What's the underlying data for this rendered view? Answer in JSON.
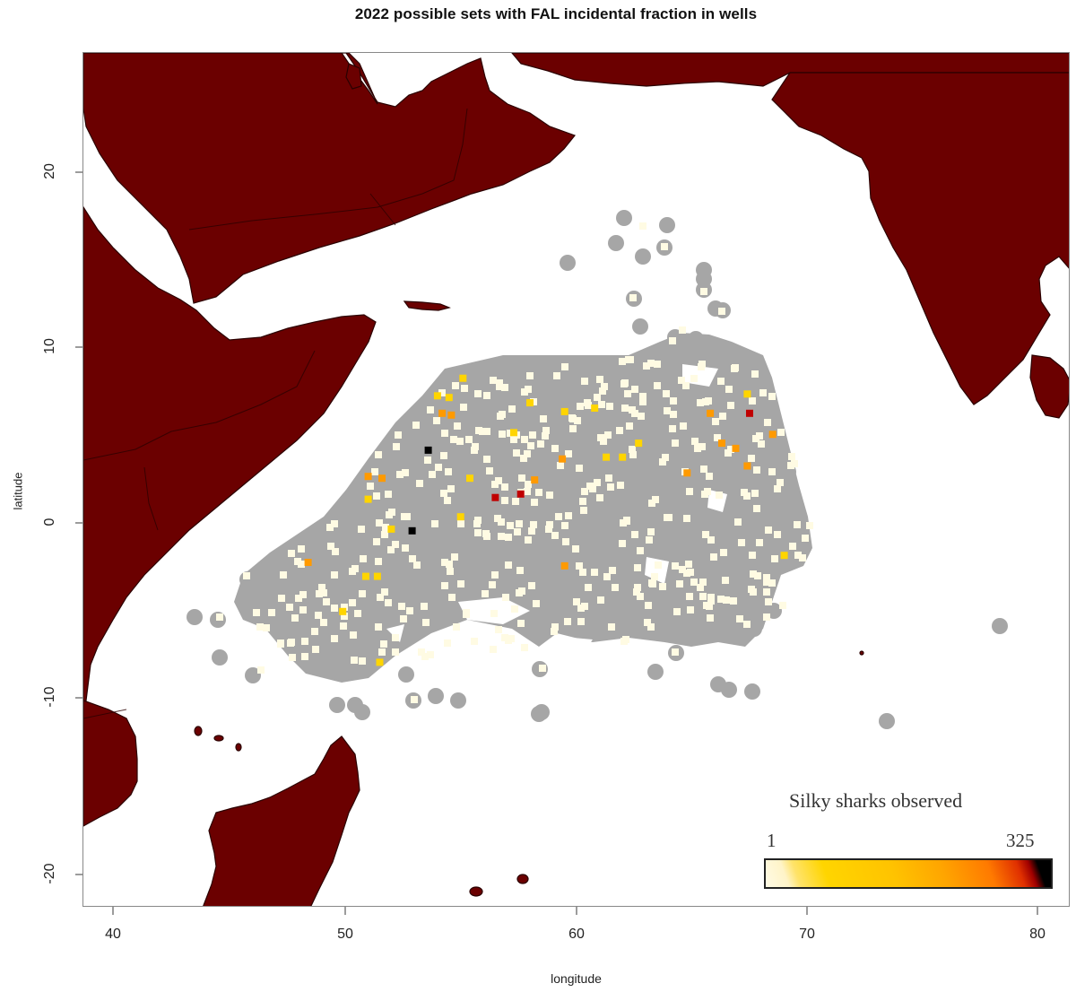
{
  "chart_data": {
    "type": "scatter",
    "title": "2022 possible sets with FAL incidental fraction in wells",
    "xlabel": "longitude",
    "ylabel": "latitude",
    "xlim": [
      38.7,
      81.4
    ],
    "ylim": [
      -21.9,
      26.9
    ],
    "x_ticks": [
      40,
      50,
      60,
      70,
      80
    ],
    "y_ticks": [
      20,
      10,
      0,
      -10,
      -20
    ],
    "grid": false,
    "land_color": "#6b0000",
    "background_color": "#ffffff",
    "layers": [
      {
        "name": "possible sets",
        "marker": "circle",
        "color": "#a6a6a6",
        "extent": {
          "lon": [
            43,
            70
          ],
          "lat": [
            -11.5,
            17.5
          ]
        }
      },
      {
        "name": "observed sets",
        "marker": "square",
        "colorscale": "heat",
        "value_range": [
          1,
          325
        ]
      }
    ],
    "legend": {
      "title": "Silky sharks observed",
      "min": "1",
      "max": "325",
      "position": "bottom-right",
      "colors": [
        "#fffbe6",
        "#ffe36a",
        "#ffd500",
        "#ffa500",
        "#ff7a00",
        "#c00000",
        "#000000"
      ]
    },
    "highlight_points": [
      {
        "lon": 53.6,
        "lat": 4.2,
        "color": "#000000"
      },
      {
        "lon": 52.9,
        "lat": -0.4,
        "color": "#000000"
      },
      {
        "lon": 56.5,
        "lat": 1.5,
        "color": "#c00000"
      },
      {
        "lon": 57.6,
        "lat": 1.7,
        "color": "#c00000"
      },
      {
        "lon": 67.5,
        "lat": 6.3,
        "color": "#c00000"
      },
      {
        "lon": 54.2,
        "lat": 6.3,
        "color": "#ff9a00"
      },
      {
        "lon": 54.6,
        "lat": 6.2,
        "color": "#ff9a00"
      },
      {
        "lon": 51.0,
        "lat": 2.7,
        "color": "#ff9a00"
      },
      {
        "lon": 51.6,
        "lat": 2.6,
        "color": "#ff9a00"
      },
      {
        "lon": 48.4,
        "lat": -2.2,
        "color": "#ff9a00"
      },
      {
        "lon": 58.2,
        "lat": 2.5,
        "color": "#ff9a00"
      },
      {
        "lon": 59.5,
        "lat": -2.4,
        "color": "#ff9a00"
      },
      {
        "lon": 64.8,
        "lat": 2.9,
        "color": "#ff9a00"
      },
      {
        "lon": 66.3,
        "lat": 4.6,
        "color": "#ff9a00"
      },
      {
        "lon": 66.9,
        "lat": 4.3,
        "color": "#ff9a00"
      },
      {
        "lon": 67.4,
        "lat": 3.3,
        "color": "#ff9a00"
      },
      {
        "lon": 68.5,
        "lat": 5.1,
        "color": "#ff9a00"
      },
      {
        "lon": 65.8,
        "lat": 6.3,
        "color": "#ff9a00"
      },
      {
        "lon": 59.4,
        "lat": 3.7,
        "color": "#ff9a00"
      },
      {
        "lon": 54.0,
        "lat": 7.3,
        "color": "#ffd500"
      },
      {
        "lon": 54.5,
        "lat": 7.2,
        "color": "#ffd500"
      },
      {
        "lon": 55.1,
        "lat": 8.3,
        "color": "#ffd500"
      },
      {
        "lon": 58.0,
        "lat": 6.9,
        "color": "#ffd500"
      },
      {
        "lon": 57.3,
        "lat": 5.2,
        "color": "#ffd500"
      },
      {
        "lon": 59.5,
        "lat": 6.4,
        "color": "#ffd500"
      },
      {
        "lon": 60.8,
        "lat": 6.6,
        "color": "#ffd500"
      },
      {
        "lon": 61.3,
        "lat": 3.8,
        "color": "#ffd500"
      },
      {
        "lon": 62.0,
        "lat": 3.8,
        "color": "#ffd500"
      },
      {
        "lon": 62.7,
        "lat": 4.6,
        "color": "#ffd500"
      },
      {
        "lon": 55.4,
        "lat": 2.6,
        "color": "#ffd500"
      },
      {
        "lon": 55.0,
        "lat": 0.4,
        "color": "#ffd500"
      },
      {
        "lon": 51.0,
        "lat": 1.4,
        "color": "#ffd500"
      },
      {
        "lon": 52.0,
        "lat": -0.3,
        "color": "#ffd500"
      },
      {
        "lon": 50.9,
        "lat": -3.0,
        "color": "#ffd500"
      },
      {
        "lon": 51.4,
        "lat": -3.0,
        "color": "#ffd500"
      },
      {
        "lon": 49.9,
        "lat": -5.0,
        "color": "#ffd500"
      },
      {
        "lon": 51.5,
        "lat": -7.9,
        "color": "#ffd500"
      },
      {
        "lon": 67.4,
        "lat": 7.4,
        "color": "#ffd500"
      },
      {
        "lon": 69.0,
        "lat": -1.8,
        "color": "#ffd500"
      }
    ]
  }
}
